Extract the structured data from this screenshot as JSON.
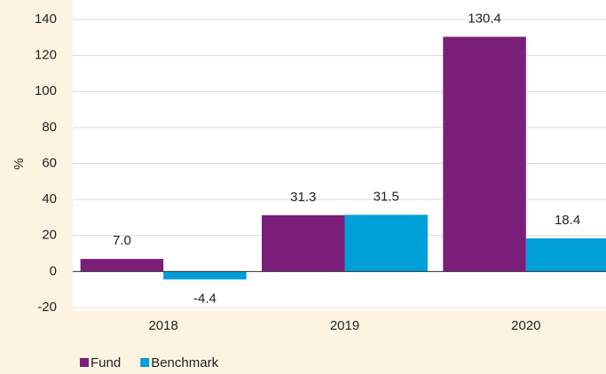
{
  "chart_data": {
    "type": "bar",
    "ylabel": "%",
    "categories": [
      "2018",
      "2019",
      "2020"
    ],
    "series": [
      {
        "name": "Fund",
        "color": "#7b1e7a",
        "values": [
          7.0,
          31.3,
          130.4
        ],
        "value_labels": [
          "7.0",
          "31.3",
          "130.4"
        ]
      },
      {
        "name": "Benchmark",
        "color": "#009fda",
        "values": [
          -4.4,
          31.5,
          18.4
        ],
        "value_labels": [
          "-4.4",
          "31.5",
          "18.4"
        ]
      }
    ],
    "ylim": [
      -20,
      140
    ],
    "yticks": [
      -20,
      0,
      20,
      40,
      60,
      80,
      100,
      120,
      140
    ],
    "grid": true,
    "legend": "bottom-left"
  }
}
